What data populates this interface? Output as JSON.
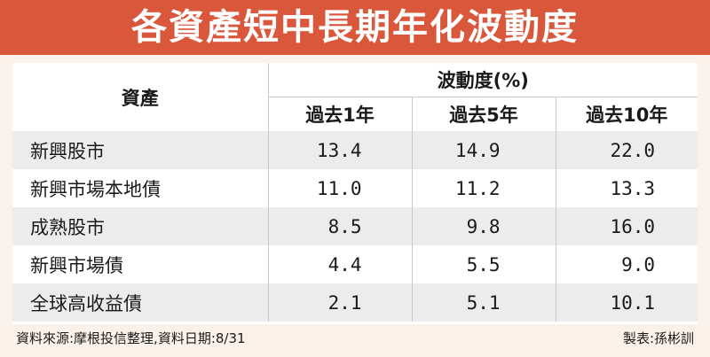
{
  "title": "各資產短中長期年化波動度",
  "chart_data": {
    "type": "table",
    "title": "各資產短中長期年化波動度",
    "row_header": "資產",
    "column_group_header": "波動度(%)",
    "columns": [
      "過去1年",
      "過去5年",
      "過去10年"
    ],
    "rows": [
      {
        "asset": "新興股市",
        "values": [
          "13.4",
          "14.9",
          "22.0"
        ]
      },
      {
        "asset": "新興市場本地債",
        "values": [
          "11.0",
          "11.2",
          "13.3"
        ]
      },
      {
        "asset": "成熟股市",
        "values": [
          "8.5",
          "9.8",
          "16.0"
        ]
      },
      {
        "asset": "新興市場債",
        "values": [
          "4.4",
          "5.5",
          "9.0"
        ]
      },
      {
        "asset": "全球高收益債",
        "values": [
          "2.1",
          "5.1",
          "10.1"
        ]
      }
    ]
  },
  "footer": {
    "source": "資料來源:摩根投信整理,資料日期:8/31",
    "credit": "製表:孫彬訓"
  },
  "colors": {
    "banner": "#d9573b",
    "background": "#f9f1ea",
    "row_shade": "#ececec"
  }
}
